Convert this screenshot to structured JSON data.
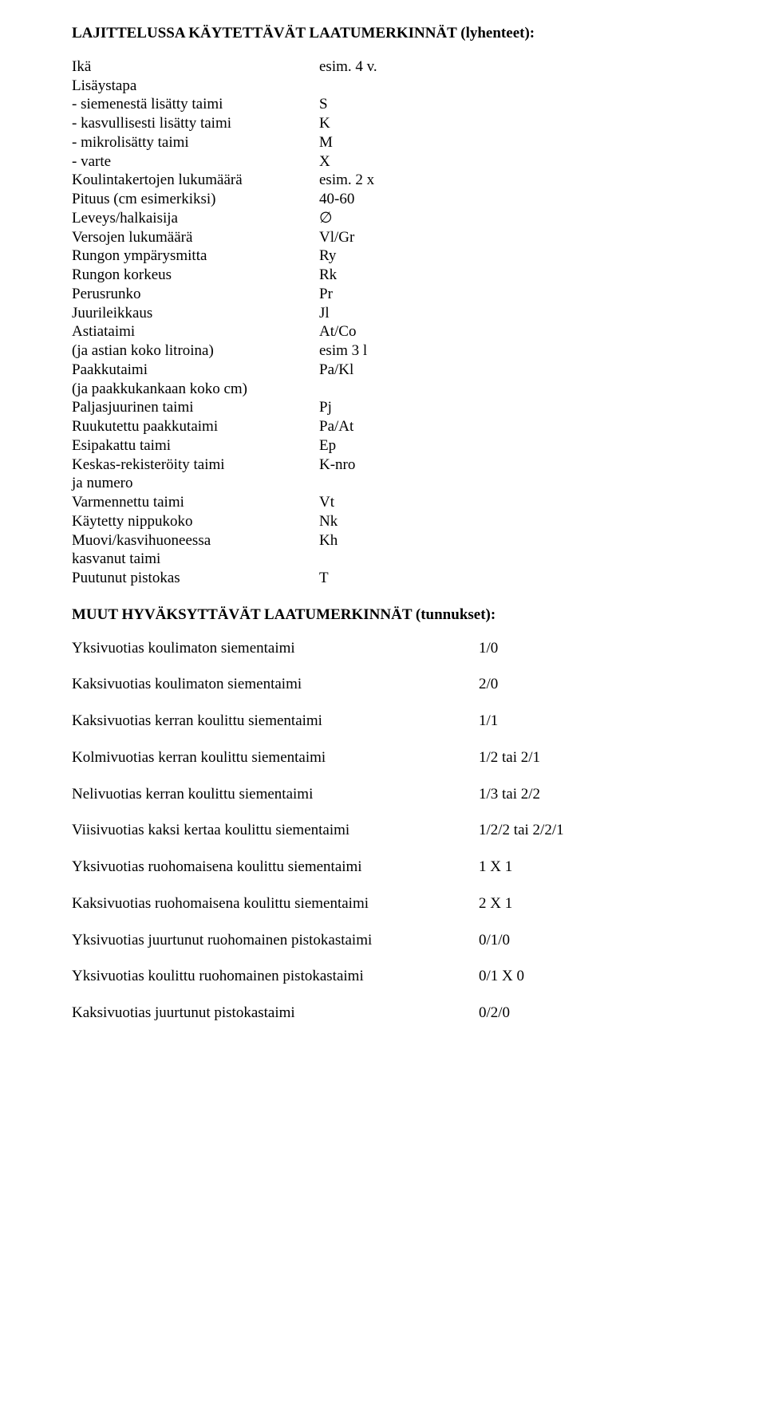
{
  "title1": "LAJITTELUSSA KÄYTETTÄVÄT LAATUMERKINNÄT (lyhenteet):",
  "rows1": [
    {
      "label": "Ikä",
      "value": "esim. 4 v."
    },
    {
      "label": "Lisäystapa",
      "value": ""
    },
    {
      "label": "- siemenestä lisätty taimi",
      "value": "S"
    },
    {
      "label": "- kasvullisesti lisätty taimi",
      "value": "K"
    },
    {
      "label": "- mikrolisätty taimi",
      "value": "M"
    },
    {
      "label": "- varte",
      "value": "X"
    },
    {
      "label": "Koulintakertojen lukumäärä",
      "value": "esim. 2 x"
    },
    {
      "label": "Pituus (cm esimerkiksi)",
      "value": "40-60"
    },
    {
      "label": "Leveys/halkaisija",
      "value": "∅"
    },
    {
      "label": "Versojen lukumäärä",
      "value": "Vl/Gr"
    },
    {
      "label": "Rungon ympärysmitta",
      "value": "Ry"
    },
    {
      "label": "Rungon korkeus",
      "value": "Rk"
    },
    {
      "label": "Perusrunko",
      "value": "Pr"
    },
    {
      "label": "Juurileikkaus",
      "value": "Jl"
    },
    {
      "label": "Astiataimi",
      "value": "At/Co"
    },
    {
      "label": "(ja astian koko litroina)",
      "value": "esim 3 l"
    },
    {
      "label": "Paakkutaimi",
      "value": "Pa/Kl"
    },
    {
      "label": "(ja paakkukankaan koko cm)",
      "value": ""
    },
    {
      "label": "Paljasjuurinen taimi",
      "value": "Pj"
    },
    {
      "label": "Ruukutettu paakkutaimi",
      "value": "Pa/At"
    },
    {
      "label": "Esipakattu taimi",
      "value": "Ep"
    },
    {
      "label": "Keskas-rekisteröity taimi",
      "value": "K-nro"
    },
    {
      "label": "ja numero",
      "value": ""
    },
    {
      "label": "Varmennettu taimi",
      "value": "Vt"
    },
    {
      "label": "Käytetty nippukoko",
      "value": "Nk"
    },
    {
      "label": "Muovi/kasvihuoneessa",
      "value": "Kh"
    },
    {
      "label": "kasvanut taimi",
      "value": ""
    },
    {
      "label": "Puutunut pistokas",
      "value": "T"
    }
  ],
  "title2": "MUUT HYVÄKSYTTÄVÄT LAATUMERKINNÄT (tunnukset):",
  "rows2": [
    {
      "label": "Yksivuotias koulimaton siementaimi",
      "value": "1/0"
    },
    {
      "label": "Kaksivuotias koulimaton siementaimi",
      "value": "2/0"
    },
    {
      "label": "Kaksivuotias kerran koulittu siementaimi",
      "value": "1/1"
    },
    {
      "label": "Kolmivuotias kerran koulittu siementaimi",
      "value": "1/2 tai 2/1"
    },
    {
      "label": "Nelivuotias kerran koulittu siementaimi",
      "value": "1/3 tai 2/2"
    },
    {
      "label": "Viisivuotias kaksi kertaa koulittu siementaimi",
      "value": "1/2/2 tai 2/2/1"
    },
    {
      "label": "Yksivuotias ruohomaisena koulittu siementaimi",
      "value": "1 X 1"
    },
    {
      "label": "Kaksivuotias ruohomaisena koulittu siementaimi",
      "value": "2 X 1"
    },
    {
      "label": "Yksivuotias juurtunut ruohomainen pistokastaimi",
      "value": "0/1/0"
    },
    {
      "label": "Yksivuotias koulittu ruohomainen pistokastaimi",
      "value": "0/1 X 0"
    },
    {
      "label": "Kaksivuotias juurtunut pistokastaimi",
      "value": "0/2/0"
    }
  ]
}
